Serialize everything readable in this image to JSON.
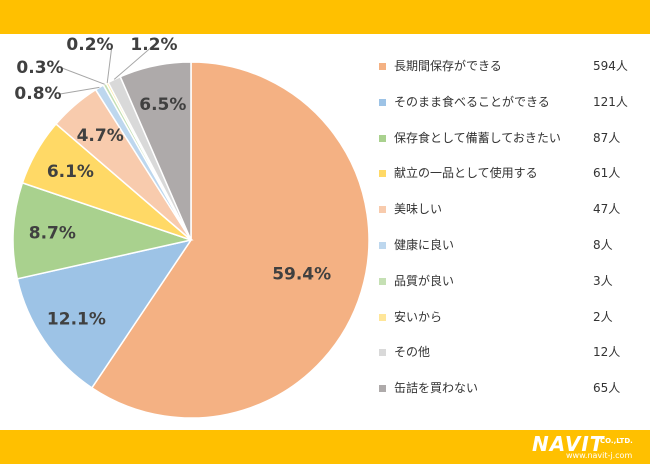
{
  "chart_data": {
    "type": "pie",
    "slices": [
      {
        "label": "長期間保存ができる",
        "count": "594人",
        "value": 594,
        "percent": "59.4%",
        "color": "#f4b183"
      },
      {
        "label": "そのまま食べることができる",
        "count": "121人",
        "value": 121,
        "percent": "12.1%",
        "color": "#9dc3e6"
      },
      {
        "label": "保存食として備蓄しておきたい",
        "count": "87人",
        "value": 87,
        "percent": "8.7%",
        "color": "#a9d18e"
      },
      {
        "label": "献立の一品として使用する",
        "count": "61人",
        "value": 61,
        "percent": "6.1%",
        "color": "#ffd966"
      },
      {
        "label": "美味しい",
        "count": "47人",
        "value": 47,
        "percent": "4.7%",
        "color": "#f8cbad"
      },
      {
        "label": "健康に良い",
        "count": "8人",
        "value": 8,
        "percent": "0.8%",
        "color": "#bdd7ee"
      },
      {
        "label": "品質が良い",
        "count": "3人",
        "value": 3,
        "percent": "0.3%",
        "color": "#c5e0b4"
      },
      {
        "label": "安いから",
        "count": "2人",
        "value": 2,
        "percent": "0.2%",
        "color": "#ffe699"
      },
      {
        "label": "その他",
        "count": "12人",
        "value": 12,
        "percent": "1.2%",
        "color": "#d9d9d9"
      },
      {
        "label": "缶詰を買わない",
        "count": "65人",
        "value": 65,
        "percent": "6.5%",
        "color": "#aeaaaa"
      }
    ]
  },
  "branding": {
    "logo_text": "NAVIT",
    "logo_suffix": "CO.,LTD.",
    "url": "www.navit-j.com",
    "accent_color": "#ffc000"
  }
}
